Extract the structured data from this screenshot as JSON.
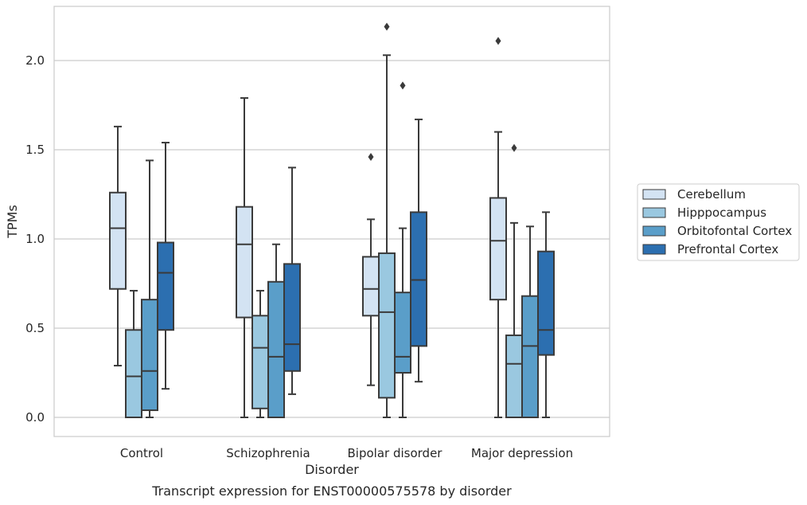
{
  "chart_data": {
    "type": "box",
    "title": "",
    "caption": "Transcript expression for ENST00000575578 by disorder",
    "xlabel": "Disorder",
    "ylabel": "TPMs",
    "ylim": [
      -0.1,
      2.3
    ],
    "yticks": [
      0.0,
      0.5,
      1.0,
      1.5,
      2.0
    ],
    "ytick_labels": [
      "0.0",
      "0.5",
      "1.0",
      "1.5",
      "2.0"
    ],
    "grid": "horizontal",
    "legend_position": "right",
    "categories": [
      "Control",
      "Schizophrenia",
      "Bipolar disorder",
      "Major depression"
    ],
    "series": [
      {
        "name": "Cerebellum",
        "color": "#d3e3f3",
        "boxes": [
          {
            "whislo": 0.29,
            "q1": 0.72,
            "med": 1.06,
            "q3": 1.26,
            "whishi": 1.63,
            "fliers": []
          },
          {
            "whislo": 0.0,
            "q1": 0.56,
            "med": 0.97,
            "q3": 1.18,
            "whishi": 1.79,
            "fliers": []
          },
          {
            "whislo": 0.18,
            "q1": 0.57,
            "med": 0.72,
            "q3": 0.9,
            "whishi": 1.11,
            "fliers": [
              1.46
            ]
          },
          {
            "whislo": 0.0,
            "q1": 0.66,
            "med": 0.99,
            "q3": 1.23,
            "whishi": 1.6,
            "fliers": [
              2.11
            ]
          }
        ]
      },
      {
        "name": "Hipppocampus",
        "color": "#9ac8e0",
        "boxes": [
          {
            "whislo": 0.0,
            "q1": 0.0,
            "med": 0.23,
            "q3": 0.49,
            "whishi": 0.71,
            "fliers": []
          },
          {
            "whislo": 0.0,
            "q1": 0.05,
            "med": 0.39,
            "q3": 0.57,
            "whishi": 0.71,
            "fliers": []
          },
          {
            "whislo": 0.0,
            "q1": 0.11,
            "med": 0.59,
            "q3": 0.92,
            "whishi": 2.03,
            "fliers": [
              2.19
            ]
          },
          {
            "whislo": 0.0,
            "q1": 0.0,
            "med": 0.3,
            "q3": 0.46,
            "whishi": 1.09,
            "fliers": [
              1.51
            ]
          }
        ]
      },
      {
        "name": "Orbitofontal Cortex",
        "color": "#5a9ec9",
        "boxes": [
          {
            "whislo": 0.0,
            "q1": 0.04,
            "med": 0.26,
            "q3": 0.66,
            "whishi": 1.44,
            "fliers": []
          },
          {
            "whislo": 0.0,
            "q1": 0.0,
            "med": 0.34,
            "q3": 0.76,
            "whishi": 0.97,
            "fliers": []
          },
          {
            "whislo": 0.0,
            "q1": 0.25,
            "med": 0.34,
            "q3": 0.7,
            "whishi": 1.06,
            "fliers": [
              1.86
            ]
          },
          {
            "whislo": 0.0,
            "q1": 0.0,
            "med": 0.4,
            "q3": 0.68,
            "whishi": 1.07,
            "fliers": []
          }
        ]
      },
      {
        "name": "Prefrontal Cortex",
        "color": "#2c6fb0",
        "boxes": [
          {
            "whislo": 0.16,
            "q1": 0.49,
            "med": 0.81,
            "q3": 0.98,
            "whishi": 1.54,
            "fliers": []
          },
          {
            "whislo": 0.13,
            "q1": 0.26,
            "med": 0.41,
            "q3": 0.86,
            "whishi": 1.4,
            "fliers": []
          },
          {
            "whislo": 0.2,
            "q1": 0.4,
            "med": 0.77,
            "q3": 1.15,
            "whishi": 1.67,
            "fliers": []
          },
          {
            "whislo": 0.0,
            "q1": 0.35,
            "med": 0.49,
            "q3": 0.93,
            "whishi": 1.15,
            "fliers": []
          }
        ]
      }
    ]
  }
}
